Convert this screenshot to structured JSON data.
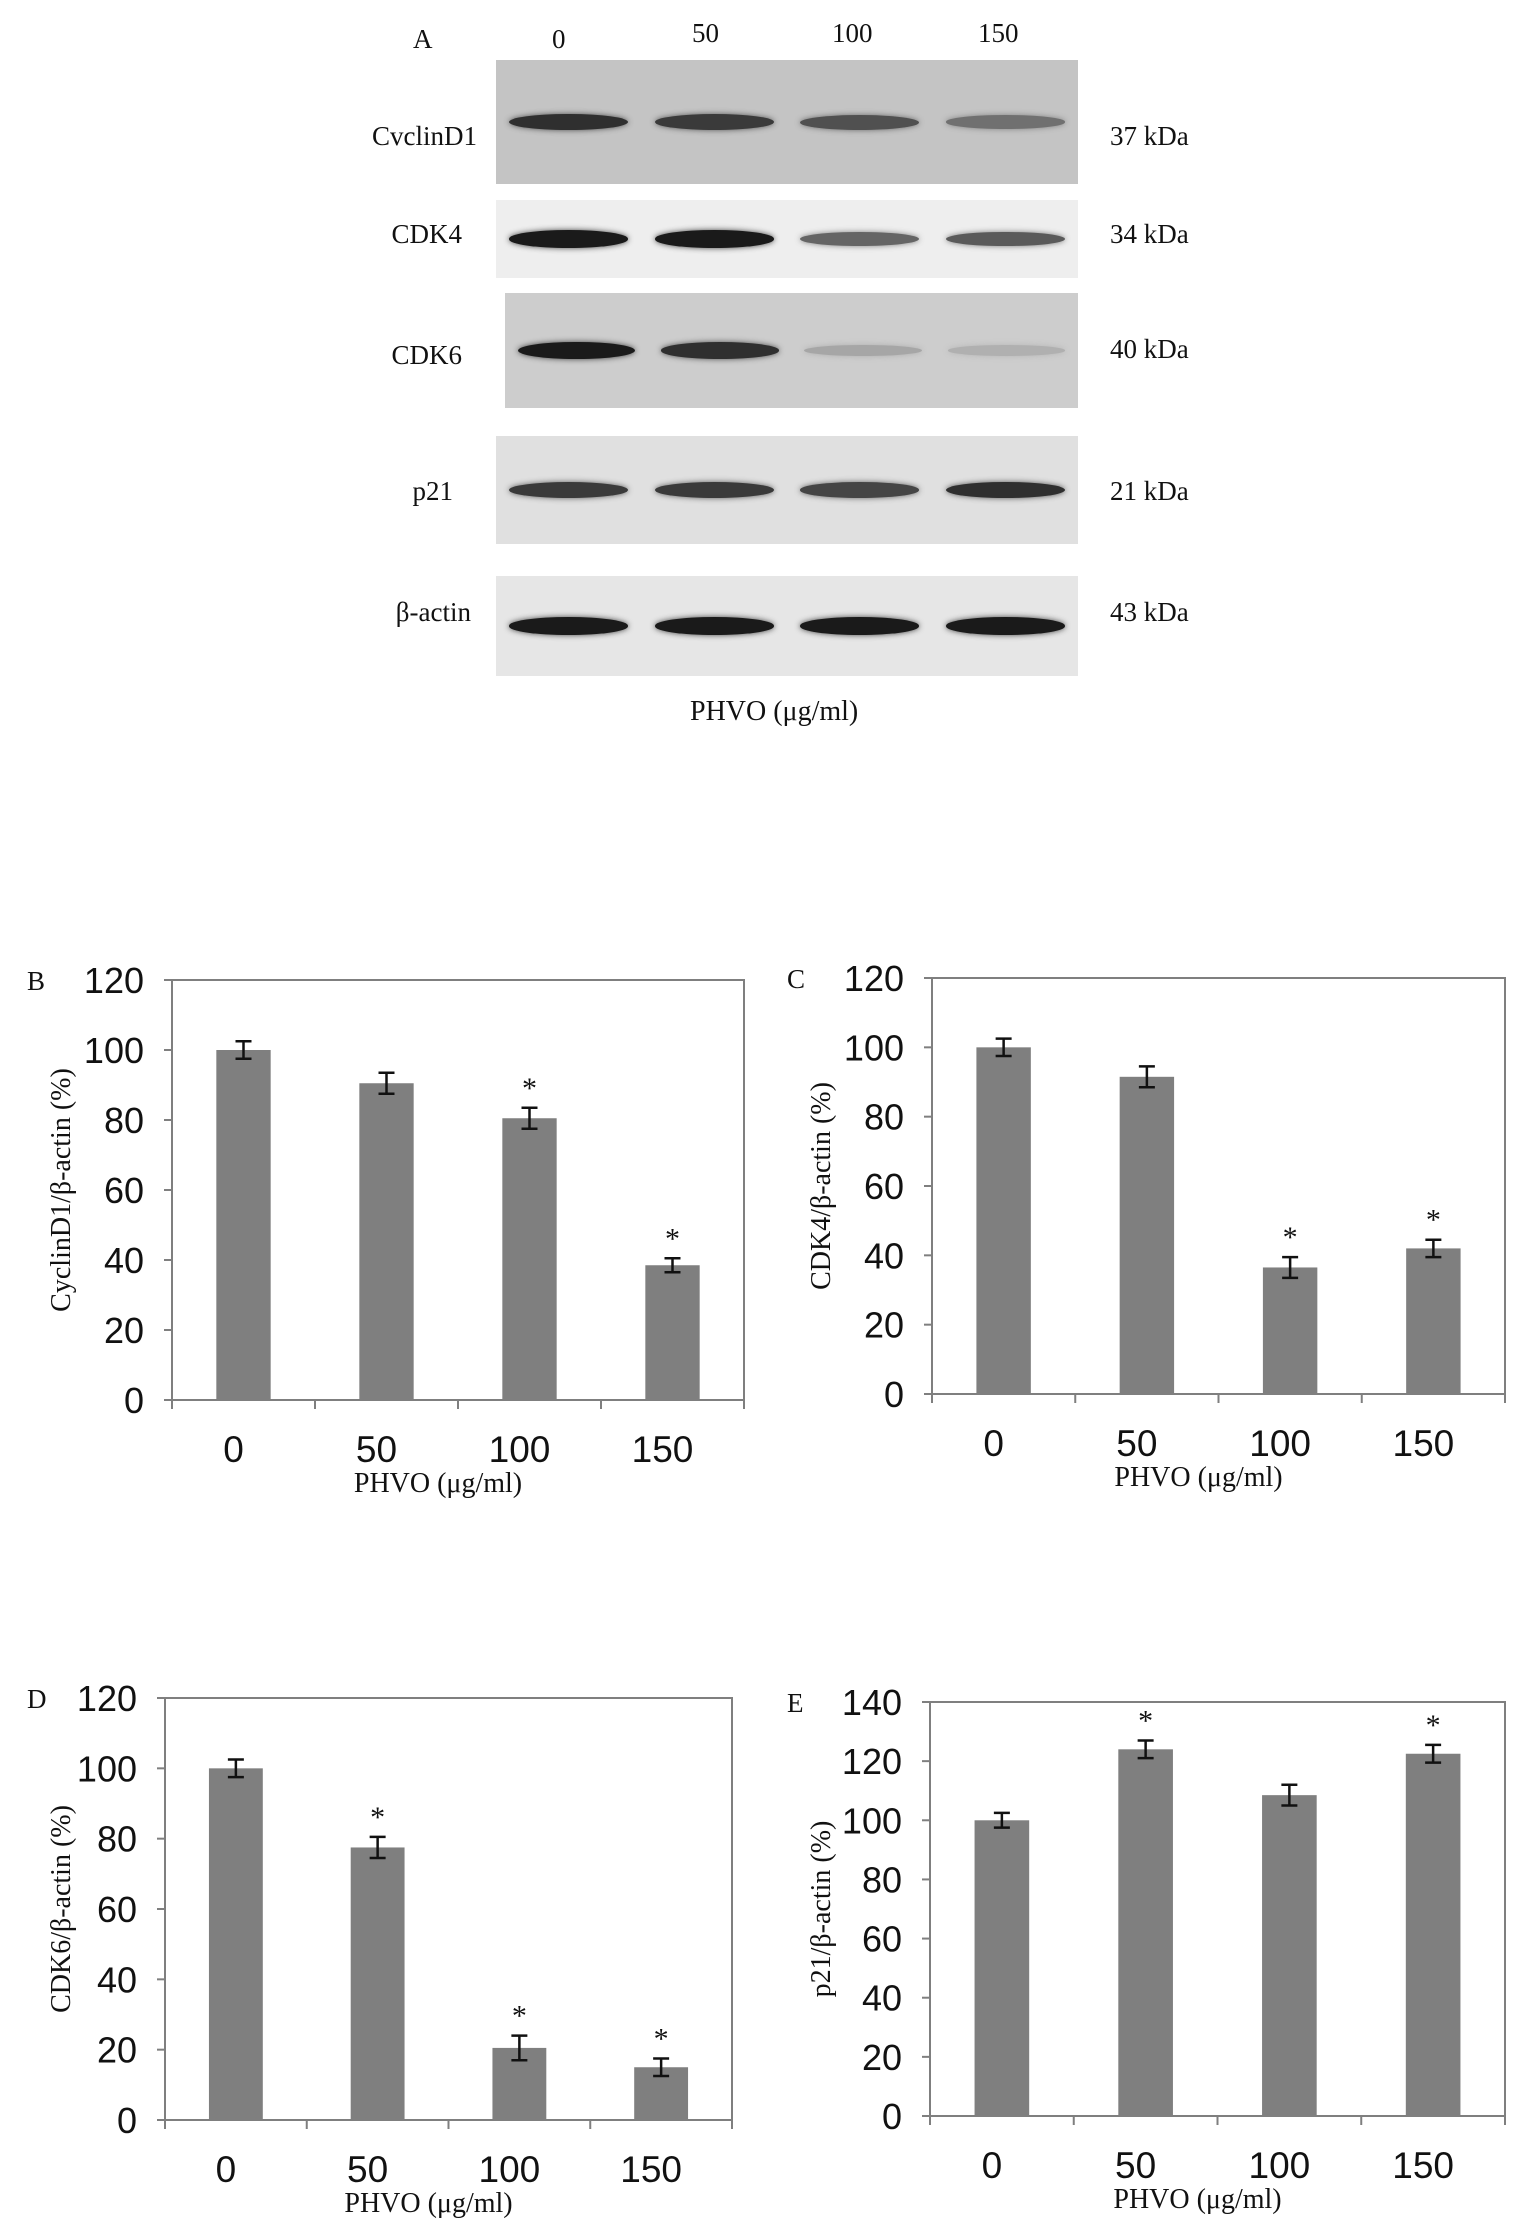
{
  "panel_a": {
    "letter": "A",
    "lanes": [
      "0",
      "50",
      "100",
      "150"
    ],
    "xlabel": "PHVO (μg/ml)",
    "blots": [
      {
        "label": "CvclinD1",
        "kda": "37 kDa",
        "intensities": [
          0.85,
          0.8,
          0.7,
          0.55
        ],
        "bg": "#c4c4c4"
      },
      {
        "label": "CDK4",
        "kda": "34 kDa",
        "intensities": [
          0.95,
          0.95,
          0.6,
          0.65
        ],
        "bg": "#eeeeee"
      },
      {
        "label": "CDK6",
        "kda": "40 kDa",
        "intensities": [
          0.95,
          0.85,
          0.3,
          0.25
        ],
        "bg": "#cdcdcd"
      },
      {
        "label": "p21",
        "kda": "21 kDa",
        "intensities": [
          0.8,
          0.8,
          0.75,
          0.85
        ],
        "bg": "#e0e0e0"
      },
      {
        "label": "β-actin",
        "kda": "43 kDa",
        "intensities": [
          0.95,
          0.95,
          0.95,
          0.95
        ],
        "bg": "#e6e6e6"
      }
    ]
  },
  "chart_data": [
    {
      "panel": "B",
      "type": "bar",
      "categories": [
        "0",
        "50",
        "100",
        "150"
      ],
      "values": [
        100,
        90.5,
        80.5,
        38.5
      ],
      "errors": [
        2.5,
        3,
        3,
        2
      ],
      "significant": [
        false,
        false,
        true,
        true
      ],
      "star": "*",
      "ylabel": "CyclinD1/β-actin (%)",
      "xlabel": "PHVO (μg/ml)",
      "ylim": [
        0,
        120
      ],
      "yticks": [
        0,
        20,
        40,
        60,
        80,
        100,
        120
      ]
    },
    {
      "panel": "C",
      "type": "bar",
      "categories": [
        "0",
        "50",
        "100",
        "150"
      ],
      "values": [
        100,
        91.5,
        36.5,
        42
      ],
      "errors": [
        2.5,
        3,
        3,
        2.5
      ],
      "significant": [
        false,
        false,
        true,
        true
      ],
      "star": "*",
      "ylabel": "CDK4/β-actin (%)",
      "xlabel": "PHVO (μg/ml)",
      "ylim": [
        0,
        120
      ],
      "yticks": [
        0,
        20,
        40,
        60,
        80,
        100,
        120
      ]
    },
    {
      "panel": "D",
      "type": "bar",
      "categories": [
        "0",
        "50",
        "100",
        "150"
      ],
      "values": [
        100,
        77.5,
        20.5,
        15
      ],
      "errors": [
        2.5,
        3,
        3.5,
        2.5
      ],
      "significant": [
        false,
        true,
        true,
        true
      ],
      "star": "*",
      "ylabel": "CDK6/β-actin (%)",
      "xlabel": "PHVO (μg/ml)",
      "ylim": [
        0,
        120
      ],
      "yticks": [
        0,
        20,
        40,
        60,
        80,
        100,
        120
      ]
    },
    {
      "panel": "E",
      "type": "bar",
      "categories": [
        "0",
        "50",
        "100",
        "150"
      ],
      "values": [
        100,
        124,
        108.5,
        122.5
      ],
      "errors": [
        2.5,
        3,
        3.5,
        3
      ],
      "significant": [
        false,
        true,
        false,
        true
      ],
      "star": "*",
      "ylabel": "p21/β-actin (%)",
      "xlabel": "PHVO (μg/ml)",
      "ylim": [
        0,
        140
      ],
      "yticks": [
        0,
        20,
        40,
        60,
        80,
        100,
        120,
        140
      ]
    }
  ],
  "colors": {
    "bar": "#7f7f7f",
    "axis": "#7f7f7f",
    "ink": "#111111"
  }
}
